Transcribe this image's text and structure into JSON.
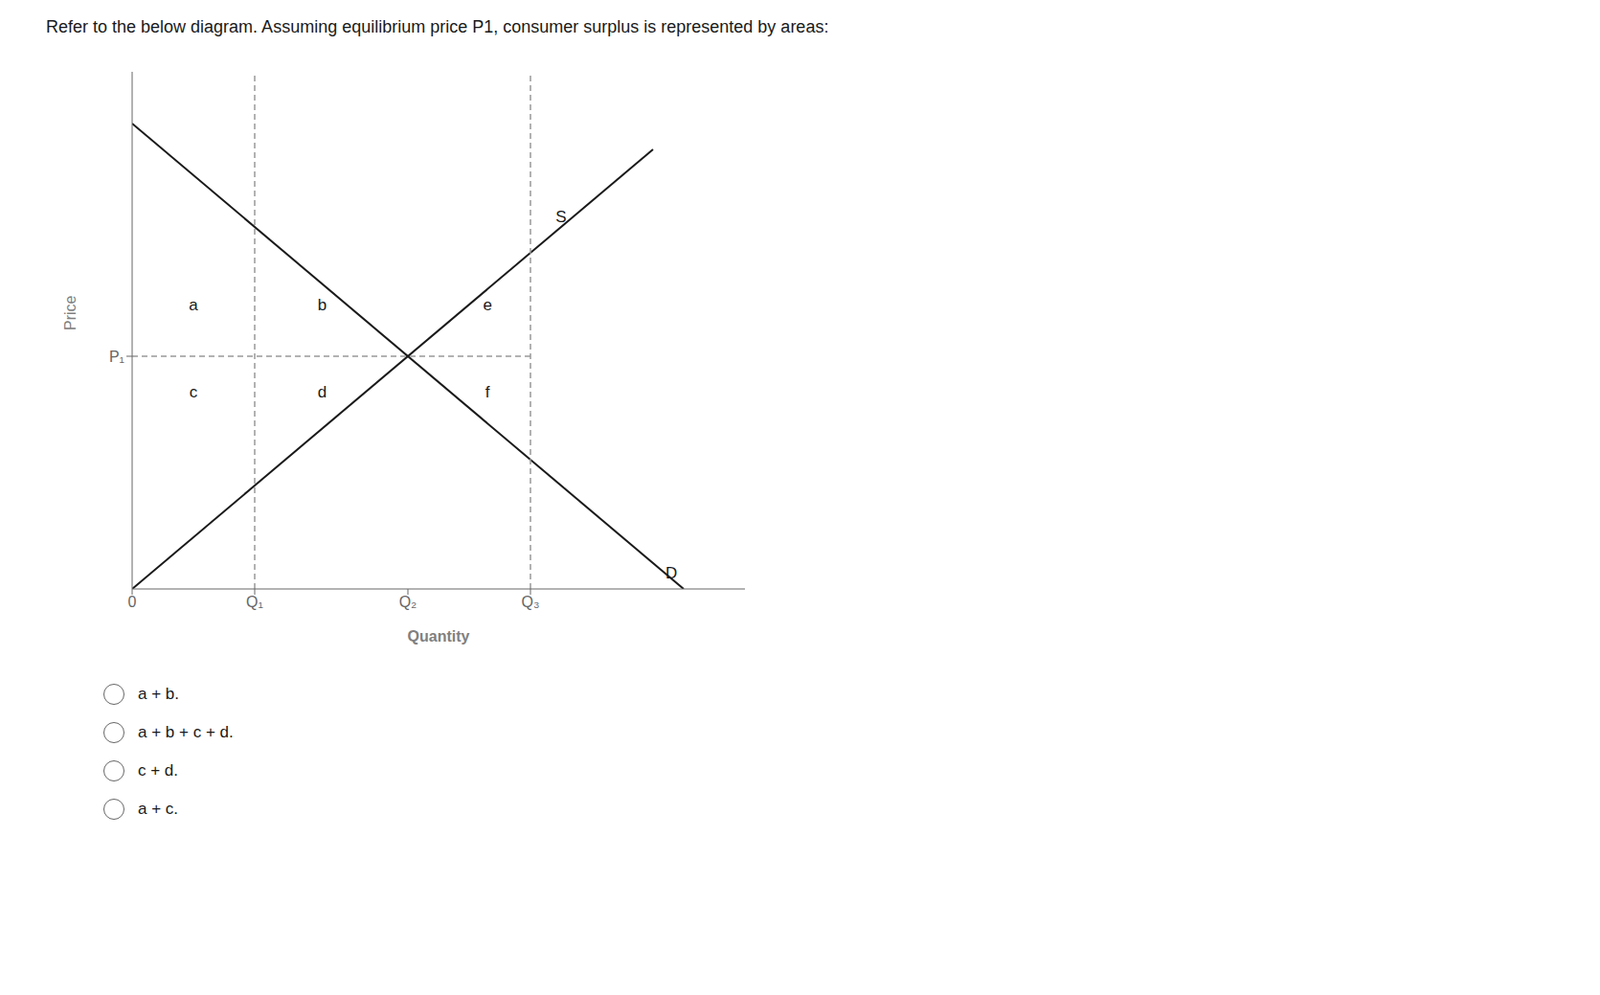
{
  "chart_data": {
    "type": "line",
    "title": "Refer to the below diagram. Assuming equilibrium price P1, consumer surplus is represented by areas:",
    "xlabel": "Quantity",
    "ylabel": "Price",
    "xlim": [
      0,
      10
    ],
    "ylim": [
      0,
      10
    ],
    "xticks": [
      0,
      {
        "value": 2.0,
        "label": "Q₁"
      },
      {
        "value": 4.5,
        "label": "Q₂"
      },
      {
        "value": 6.5,
        "label": "Q₃"
      }
    ],
    "yticks": [
      {
        "value": 4.5,
        "label": "P₁"
      }
    ],
    "grid": false,
    "series": [
      {
        "x": [
          0,
          9
        ],
        "values": [
          9,
          0
        ],
        "color": "#1a1a1a",
        "line_style": "solid"
      },
      {
        "x": [
          0,
          8.5
        ],
        "values": [
          0,
          8.5
        ],
        "color": "#1a1a1a",
        "line_style": "solid"
      },
      {
        "x": [
          2.0,
          2.0
        ],
        "values": [
          0,
          10
        ],
        "color": "#999999",
        "line_style": "dashed"
      },
      {
        "x": [
          6.5,
          6.5
        ],
        "values": [
          0,
          10
        ],
        "color": "#999999",
        "line_style": "dashed"
      },
      {
        "x": [
          0,
          6.5
        ],
        "values": [
          4.5,
          4.5
        ],
        "color": "#999999",
        "line_style": "dashed"
      }
    ],
    "annotations": [
      {
        "text": "S",
        "x": 7.0,
        "y": 7.2
      },
      {
        "text": "D",
        "x": 8.8,
        "y": 0.3
      },
      {
        "text": "a",
        "x": 1.0,
        "y": 5.5
      },
      {
        "text": "b",
        "x": 3.1,
        "y": 5.5
      },
      {
        "text": "c",
        "x": 1.0,
        "y": 3.8
      },
      {
        "text": "d",
        "x": 3.1,
        "y": 3.8
      },
      {
        "text": "e",
        "x": 5.8,
        "y": 5.5
      },
      {
        "text": "f",
        "x": 5.8,
        "y": 3.8
      }
    ],
    "options": [
      "a + b.",
      "a + b + c + d.",
      "c + d.",
      "a + c."
    ]
  }
}
